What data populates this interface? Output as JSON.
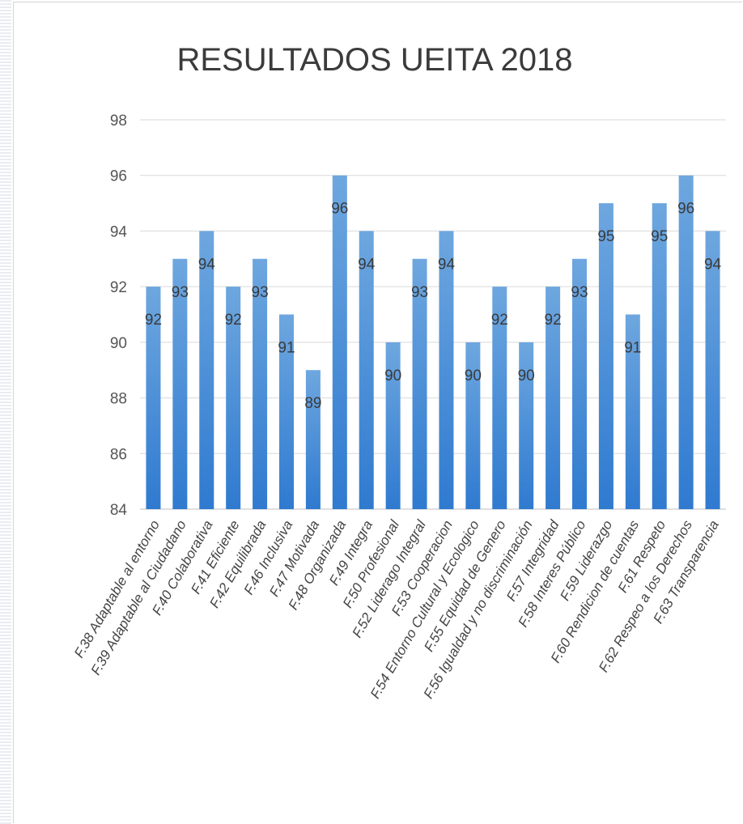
{
  "chart_data": {
    "type": "bar",
    "title": "RESULTADOS UEITA 2018",
    "xlabel": "",
    "ylabel": "",
    "ylim": [
      84,
      98
    ],
    "yticks": [
      84,
      86,
      88,
      90,
      92,
      94,
      96,
      98
    ],
    "grid": true,
    "legend": "none",
    "colors": {
      "bar_top": "#6ea7df",
      "bar_bottom": "#2f7ad0",
      "grid": "#d9d9d9",
      "axis": "#bfbfbf"
    },
    "categories": [
      "F.38 Adaptable al entorno",
      "F.39 Adaptable al Ciudadano",
      "F.40 Colaborativa",
      "F.41 Eficiente",
      "F.42 Equilibrada",
      "F.46 Inclusiva",
      "F.47 Motivada",
      "F.48 Organizada",
      "F.49 Integra",
      "F.50 Profesional",
      "F.52 Liderago Integral",
      "F.53 Cooperacion",
      "F.54 Entorno Cultural y Ecologico",
      "F.55 Equidad de Genero",
      "F.56 Igualdad y no discriminación",
      "F.57 Integridad",
      "F.58 Interes Público",
      "F.59 Liderazgo",
      "F.60 Rendicion de cuentas",
      "F.61 Respeto",
      "F.62 Respeo a los Derechos",
      "F.63 Transparencia"
    ],
    "values": [
      92,
      93,
      94,
      92,
      93,
      91,
      89,
      96,
      94,
      90,
      93,
      94,
      90,
      92,
      90,
      92,
      93,
      95,
      91,
      95,
      96,
      94
    ],
    "data_labels": [
      "92",
      "93",
      "94",
      "92",
      "93",
      "91",
      "89",
      "96",
      "94",
      "90",
      "93",
      "94",
      "90",
      "92",
      "90",
      "92",
      "93",
      "95",
      "91",
      "95",
      "96",
      "94"
    ]
  }
}
